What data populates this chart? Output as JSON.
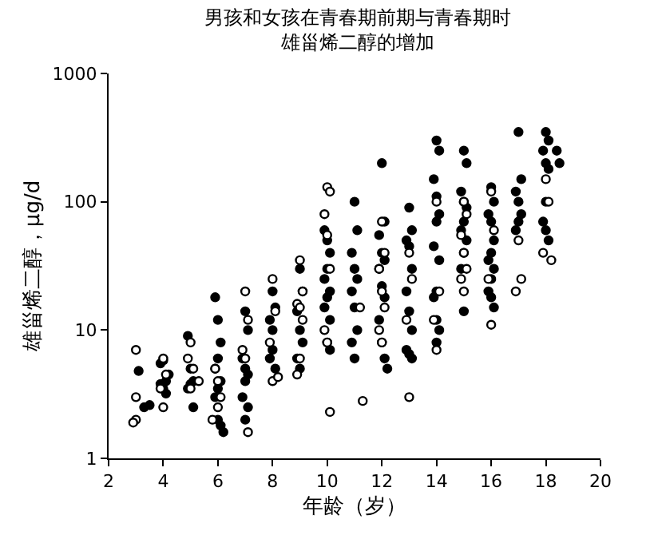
{
  "chart_data": {
    "type": "scatter",
    "title": "男孩和女孩在青春期前期与青春期时雄甾烯二醇的增加",
    "xlabel": "年龄（岁）",
    "ylabel": "雄甾烯二醇，μg/d",
    "log": "y",
    "xlim": [
      2,
      20
    ],
    "xticks": [
      2,
      4,
      6,
      8,
      10,
      12,
      14,
      16,
      18,
      20
    ],
    "ylim": [
      1,
      1000
    ],
    "yticks": [
      1,
      10,
      100,
      1000
    ],
    "marker": "circle",
    "series": [
      {
        "color": "#000000",
        "x": [
          3.1,
          3.3,
          3.5,
          3.9,
          4.0,
          4.1,
          4.0,
          4.1,
          3.9,
          4.2,
          4.9,
          5.0,
          5.1,
          5.0,
          5.1,
          4.9,
          5.9,
          6.0,
          6.1,
          6.0,
          5.9,
          6.1,
          6.0,
          5.9,
          6.0,
          6.1,
          6.2,
          7.0,
          7.1,
          6.9,
          7.0,
          7.1,
          7.0,
          6.9,
          7.1,
          7.0,
          8.0,
          8.1,
          7.9,
          8.0,
          8.1,
          8.0,
          7.9,
          9.0,
          9.1,
          8.9,
          9.0,
          9.1,
          8.9,
          9.0,
          9.9,
          10.0,
          10.1,
          10.0,
          9.9,
          10.1,
          10.0,
          10.1,
          9.9,
          10.0,
          10.1,
          11.0,
          11.1,
          10.9,
          11.0,
          11.1,
          10.9,
          11.0,
          11.1,
          10.9,
          11.0,
          12.0,
          12.1,
          11.9,
          12.0,
          12.1,
          11.9,
          12.0,
          12.1,
          11.9,
          12.0,
          12.1,
          12.2,
          13.0,
          13.1,
          12.9,
          13.0,
          13.1,
          12.9,
          13.0,
          13.1,
          12.9,
          13.0,
          13.1,
          14.0,
          14.1,
          13.9,
          14.0,
          14.1,
          14.0,
          13.9,
          14.1,
          14.0,
          13.9,
          14.0,
          14.1,
          14.0,
          15.0,
          15.1,
          14.9,
          15.0,
          15.1,
          15.0,
          14.9,
          15.1,
          15.0,
          14.9,
          15.0,
          16.0,
          16.1,
          15.9,
          16.0,
          16.1,
          16.0,
          15.9,
          16.1,
          16.0,
          15.9,
          16.0,
          16.1,
          17.0,
          17.1,
          16.9,
          17.0,
          17.1,
          17.0,
          16.9,
          18.0,
          18.1,
          17.9,
          18.0,
          18.1,
          18.0,
          17.9,
          18.0,
          18.1,
          18.5,
          18.4
        ],
        "values": [
          4.8,
          2.5,
          2.6,
          5.5,
          5.8,
          4,
          3.5,
          3.2,
          3.8,
          4.5,
          9,
          5,
          4,
          3.8,
          2.5,
          3.5,
          18,
          12,
          8,
          6,
          5,
          4,
          3.5,
          3,
          2,
          1.8,
          1.6,
          14,
          10,
          6,
          5,
          4.5,
          4,
          3,
          2.5,
          2,
          20,
          15,
          12,
          10,
          5,
          7,
          6,
          30,
          20,
          14,
          10,
          8,
          6,
          5,
          60,
          50,
          40,
          30,
          25,
          20,
          18,
          12,
          15,
          8,
          7,
          100,
          60,
          40,
          30,
          25,
          20,
          15,
          10,
          8,
          6,
          200,
          70,
          55,
          40,
          35,
          30,
          22,
          18,
          12,
          8,
          6,
          5,
          90,
          60,
          50,
          45,
          30,
          20,
          14,
          10,
          7,
          6.5,
          6,
          300,
          250,
          150,
          110,
          80,
          70,
          45,
          35,
          20,
          18,
          12,
          10,
          8,
          250,
          200,
          120,
          100,
          90,
          70,
          60,
          50,
          40,
          30,
          14,
          130,
          100,
          80,
          70,
          50,
          40,
          35,
          30,
          25,
          20,
          18,
          15,
          350,
          150,
          120,
          100,
          80,
          70,
          60,
          350,
          300,
          250,
          200,
          180,
          100,
          70,
          60,
          50,
          200,
          250
        ]
      },
      {
        "color": "#ffffff",
        "x": [
          3.0,
          3.0,
          3.0,
          2.9,
          4.0,
          4.1,
          3.9,
          4.0,
          5.0,
          4.9,
          5.1,
          5.0,
          5.3,
          5.9,
          6.0,
          6.1,
          6.0,
          5.8,
          7.0,
          7.1,
          6.9,
          7.0,
          7.1,
          8.0,
          8.1,
          7.9,
          8.0,
          8.2,
          9.0,
          9.1,
          8.9,
          9.0,
          9.1,
          9.0,
          8.9,
          10.0,
          10.1,
          9.9,
          10.0,
          10.1,
          9.9,
          10.0,
          10.1,
          11.2,
          11.3,
          12.0,
          12.1,
          11.9,
          12.0,
          12.1,
          11.9,
          12.0,
          13.0,
          13.1,
          12.9,
          13.0,
          14.0,
          14.1,
          13.9,
          14.0,
          15.0,
          15.1,
          14.9,
          15.0,
          15.1,
          14.9,
          15.0,
          16.0,
          16.1,
          15.9,
          16.0,
          17.0,
          17.1,
          16.9,
          18.0,
          18.1,
          17.9,
          18.2
        ],
        "values": [
          7,
          3,
          2,
          1.9,
          6,
          4.5,
          3.5,
          2.5,
          8,
          6,
          5,
          3.5,
          4,
          5,
          4,
          3,
          2.5,
          2,
          20,
          12,
          7,
          6,
          1.6,
          25,
          14,
          8,
          4,
          4.3,
          35,
          20,
          16,
          15,
          12,
          6,
          4.5,
          130,
          120,
          80,
          55,
          30,
          10,
          8,
          2.3,
          15,
          2.8,
          70,
          40,
          30,
          20,
          15,
          10,
          8,
          40,
          25,
          12,
          3,
          100,
          20,
          12,
          7,
          100,
          80,
          55,
          40,
          30,
          25,
          20,
          120,
          60,
          25,
          11,
          50,
          25,
          20,
          150,
          100,
          40,
          35
        ]
      }
    ]
  }
}
